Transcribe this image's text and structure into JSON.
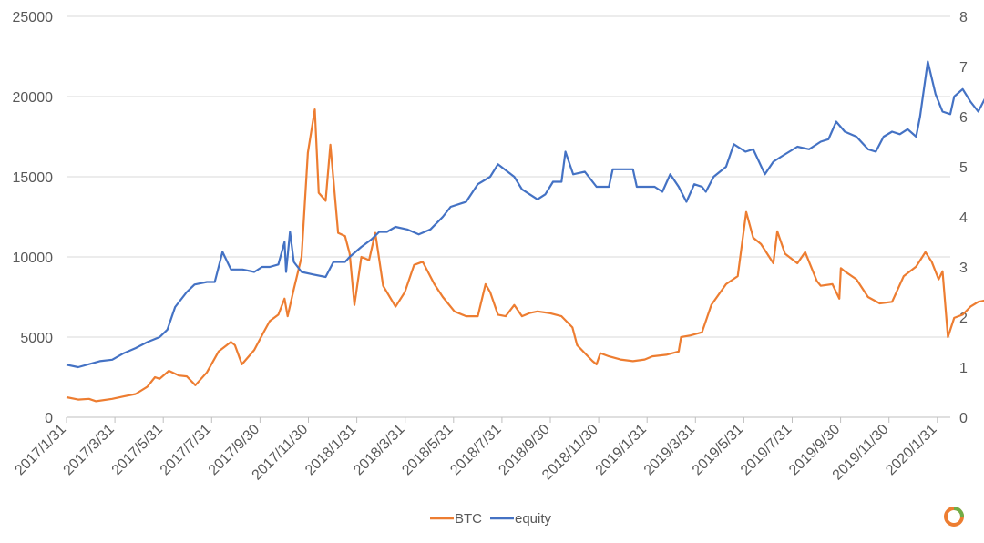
{
  "chart_data": {
    "type": "line",
    "title": "",
    "xlabel": "",
    "ylabel": "",
    "x_tick_labels": [
      "2017/1/31",
      "2017/3/31",
      "2017/5/31",
      "2017/7/31",
      "2017/9/30",
      "2017/11/30",
      "2018/1/31",
      "2018/3/31",
      "2018/5/31",
      "2018/7/31",
      "2018/9/30",
      "2018/11/30",
      "2019/1/31",
      "2019/3/31",
      "2019/5/31",
      "2019/7/31",
      "2019/9/30",
      "2019/11/30",
      "2020/1/31"
    ],
    "x_range": [
      "2017-01-31",
      "2020-03-15"
    ],
    "y_left": {
      "min": 0,
      "max": 25000,
      "ticks": [
        "0",
        "5000",
        "10000",
        "15000",
        "20000",
        "25000"
      ]
    },
    "y_right": {
      "min": 0,
      "max": 8,
      "ticks": [
        "0",
        "1",
        "2",
        "3",
        "4",
        "5",
        "6",
        "7",
        "8"
      ]
    },
    "grid": "horizontal",
    "legend_position": "bottom",
    "series": [
      {
        "name": "BTC",
        "axis": "left",
        "color": "#ED7D31",
        "points": [
          [
            "2017-01-31",
            1250
          ],
          [
            "2017-02-15",
            1100
          ],
          [
            "2017-03-01",
            1150
          ],
          [
            "2017-03-10",
            1000
          ],
          [
            "2017-03-31",
            1150
          ],
          [
            "2017-04-15",
            1300
          ],
          [
            "2017-04-30",
            1450
          ],
          [
            "2017-05-15",
            1900
          ],
          [
            "2017-05-25",
            2500
          ],
          [
            "2017-05-31",
            2400
          ],
          [
            "2017-06-12",
            2900
          ],
          [
            "2017-06-25",
            2600
          ],
          [
            "2017-07-05",
            2550
          ],
          [
            "2017-07-16",
            2000
          ],
          [
            "2017-07-31",
            2800
          ],
          [
            "2017-08-15",
            4100
          ],
          [
            "2017-08-31",
            4700
          ],
          [
            "2017-09-05",
            4500
          ],
          [
            "2017-09-14",
            3300
          ],
          [
            "2017-09-30",
            4200
          ],
          [
            "2017-10-12",
            5300
          ],
          [
            "2017-10-20",
            6000
          ],
          [
            "2017-10-31",
            6400
          ],
          [
            "2017-11-08",
            7400
          ],
          [
            "2017-11-12",
            6300
          ],
          [
            "2017-11-20",
            8000
          ],
          [
            "2017-11-30",
            10000
          ],
          [
            "2017-12-08",
            16500
          ],
          [
            "2017-12-17",
            19200
          ],
          [
            "2017-12-22",
            14000
          ],
          [
            "2017-12-31",
            13500
          ],
          [
            "2018-01-06",
            17000
          ],
          [
            "2018-01-16",
            11500
          ],
          [
            "2018-01-25",
            11300
          ],
          [
            "2018-01-31",
            10200
          ],
          [
            "2018-02-06",
            7000
          ],
          [
            "2018-02-15",
            10000
          ],
          [
            "2018-02-25",
            9800
          ],
          [
            "2018-03-05",
            11500
          ],
          [
            "2018-03-15",
            8200
          ],
          [
            "2018-03-31",
            6900
          ],
          [
            "2018-04-12",
            7800
          ],
          [
            "2018-04-24",
            9500
          ],
          [
            "2018-05-05",
            9700
          ],
          [
            "2018-05-20",
            8300
          ],
          [
            "2018-05-31",
            7500
          ],
          [
            "2018-06-15",
            6600
          ],
          [
            "2018-06-30",
            6300
          ],
          [
            "2018-07-15",
            6300
          ],
          [
            "2018-07-25",
            8300
          ],
          [
            "2018-07-31",
            7800
          ],
          [
            "2018-08-10",
            6400
          ],
          [
            "2018-08-20",
            6300
          ],
          [
            "2018-08-31",
            7000
          ],
          [
            "2018-09-10",
            6300
          ],
          [
            "2018-09-20",
            6500
          ],
          [
            "2018-09-30",
            6600
          ],
          [
            "2018-10-15",
            6500
          ],
          [
            "2018-10-31",
            6300
          ],
          [
            "2018-11-14",
            5600
          ],
          [
            "2018-11-20",
            4500
          ],
          [
            "2018-11-30",
            4000
          ],
          [
            "2018-12-10",
            3500
          ],
          [
            "2018-12-15",
            3300
          ],
          [
            "2018-12-20",
            4000
          ],
          [
            "2018-12-31",
            3800
          ],
          [
            "2019-01-15",
            3600
          ],
          [
            "2019-01-31",
            3500
          ],
          [
            "2019-02-15",
            3600
          ],
          [
            "2019-02-25",
            3800
          ],
          [
            "2019-03-15",
            3900
          ],
          [
            "2019-03-31",
            4100
          ],
          [
            "2019-04-03",
            5000
          ],
          [
            "2019-04-15",
            5100
          ],
          [
            "2019-04-30",
            5300
          ],
          [
            "2019-05-12",
            7000
          ],
          [
            "2019-05-31",
            8300
          ],
          [
            "2019-06-15",
            8800
          ],
          [
            "2019-06-26",
            12800
          ],
          [
            "2019-07-05",
            11200
          ],
          [
            "2019-07-15",
            10800
          ],
          [
            "2019-07-31",
            9600
          ],
          [
            "2019-08-05",
            11600
          ],
          [
            "2019-08-15",
            10200
          ],
          [
            "2019-08-31",
            9600
          ],
          [
            "2019-09-10",
            10300
          ],
          [
            "2019-09-25",
            8500
          ],
          [
            "2019-09-30",
            8200
          ],
          [
            "2019-10-15",
            8300
          ],
          [
            "2019-10-24",
            7400
          ],
          [
            "2019-10-26",
            9300
          ],
          [
            "2019-10-31",
            9100
          ],
          [
            "2019-11-15",
            8600
          ],
          [
            "2019-11-30",
            7500
          ],
          [
            "2019-12-15",
            7100
          ],
          [
            "2019-12-31",
            7200
          ],
          [
            "2020-01-15",
            8800
          ],
          [
            "2020-01-31",
            9400
          ],
          [
            "2020-02-12",
            10300
          ],
          [
            "2020-02-20",
            9700
          ],
          [
            "2020-02-29",
            8600
          ],
          [
            "2020-03-05",
            9100
          ],
          [
            "2020-03-12",
            5000
          ],
          [
            "2020-03-20",
            6200
          ],
          [
            "2020-03-31",
            6400
          ],
          [
            "2020-04-10",
            6900
          ],
          [
            "2020-04-20",
            7200
          ],
          [
            "2020-04-30",
            7300
          ]
        ]
      },
      {
        "name": "equity",
        "axis": "right",
        "color": "#4472C4",
        "points": [
          [
            "2017-01-31",
            1.05
          ],
          [
            "2017-02-15",
            1.0
          ],
          [
            "2017-03-15",
            1.12
          ],
          [
            "2017-03-31",
            1.15
          ],
          [
            "2017-04-15",
            1.28
          ],
          [
            "2017-04-30",
            1.38
          ],
          [
            "2017-05-15",
            1.5
          ],
          [
            "2017-05-31",
            1.6
          ],
          [
            "2017-06-10",
            1.75
          ],
          [
            "2017-06-20",
            2.2
          ],
          [
            "2017-07-05",
            2.5
          ],
          [
            "2017-07-15",
            2.65
          ],
          [
            "2017-07-31",
            2.7
          ],
          [
            "2017-08-10",
            2.7
          ],
          [
            "2017-08-20",
            3.3
          ],
          [
            "2017-08-31",
            2.95
          ],
          [
            "2017-09-15",
            2.95
          ],
          [
            "2017-09-30",
            2.9
          ],
          [
            "2017-10-10",
            3.0
          ],
          [
            "2017-10-20",
            3.0
          ],
          [
            "2017-10-31",
            3.05
          ],
          [
            "2017-11-08",
            3.5
          ],
          [
            "2017-11-10",
            2.9
          ],
          [
            "2017-11-15",
            3.7
          ],
          [
            "2017-11-20",
            3.1
          ],
          [
            "2017-11-30",
            2.9
          ],
          [
            "2017-12-15",
            2.85
          ],
          [
            "2017-12-31",
            2.8
          ],
          [
            "2018-01-10",
            3.1
          ],
          [
            "2018-01-25",
            3.1
          ],
          [
            "2018-01-31",
            3.2
          ],
          [
            "2018-02-15",
            3.4
          ],
          [
            "2018-02-28",
            3.55
          ],
          [
            "2018-03-10",
            3.7
          ],
          [
            "2018-03-20",
            3.7
          ],
          [
            "2018-03-31",
            3.8
          ],
          [
            "2018-04-15",
            3.75
          ],
          [
            "2018-04-30",
            3.65
          ],
          [
            "2018-05-15",
            3.75
          ],
          [
            "2018-05-31",
            4.0
          ],
          [
            "2018-06-10",
            4.2
          ],
          [
            "2018-06-30",
            4.3
          ],
          [
            "2018-07-15",
            4.65
          ],
          [
            "2018-07-31",
            4.8
          ],
          [
            "2018-08-10",
            5.05
          ],
          [
            "2018-08-31",
            4.8
          ],
          [
            "2018-09-10",
            4.55
          ],
          [
            "2018-09-30",
            4.35
          ],
          [
            "2018-10-10",
            4.45
          ],
          [
            "2018-10-20",
            4.7
          ],
          [
            "2018-10-31",
            4.7
          ],
          [
            "2018-11-05",
            5.3
          ],
          [
            "2018-11-15",
            4.85
          ],
          [
            "2018-11-30",
            4.9
          ],
          [
            "2018-12-15",
            4.6
          ],
          [
            "2018-12-31",
            4.6
          ],
          [
            "2019-01-05",
            4.95
          ],
          [
            "2019-01-31",
            4.95
          ],
          [
            "2019-02-05",
            4.6
          ],
          [
            "2019-02-28",
            4.6
          ],
          [
            "2019-03-10",
            4.5
          ],
          [
            "2019-03-20",
            4.85
          ],
          [
            "2019-03-31",
            4.6
          ],
          [
            "2019-04-10",
            4.3
          ],
          [
            "2019-04-20",
            4.65
          ],
          [
            "2019-04-30",
            4.6
          ],
          [
            "2019-05-05",
            4.5
          ],
          [
            "2019-05-15",
            4.8
          ],
          [
            "2019-05-31",
            5.0
          ],
          [
            "2019-06-10",
            5.45
          ],
          [
            "2019-06-25",
            5.3
          ],
          [
            "2019-07-05",
            5.35
          ],
          [
            "2019-07-20",
            4.85
          ],
          [
            "2019-07-31",
            5.1
          ],
          [
            "2019-08-10",
            5.2
          ],
          [
            "2019-08-31",
            5.4
          ],
          [
            "2019-09-15",
            5.35
          ],
          [
            "2019-09-30",
            5.5
          ],
          [
            "2019-10-10",
            5.55
          ],
          [
            "2019-10-20",
            5.9
          ],
          [
            "2019-10-31",
            5.7
          ],
          [
            "2019-11-15",
            5.6
          ],
          [
            "2019-11-30",
            5.35
          ],
          [
            "2019-12-10",
            5.3
          ],
          [
            "2019-12-20",
            5.6
          ],
          [
            "2019-12-31",
            5.7
          ],
          [
            "2020-01-10",
            5.65
          ],
          [
            "2020-01-20",
            5.75
          ],
          [
            "2020-01-31",
            5.6
          ],
          [
            "2020-02-05",
            6.0
          ],
          [
            "2020-02-15",
            7.1
          ],
          [
            "2020-02-25",
            6.45
          ],
          [
            "2020-03-05",
            6.1
          ],
          [
            "2020-03-15",
            6.05
          ],
          [
            "2020-03-20",
            6.4
          ],
          [
            "2020-03-31",
            6.55
          ],
          [
            "2020-04-10",
            6.3
          ],
          [
            "2020-04-20",
            6.1
          ],
          [
            "2020-04-30",
            6.4
          ]
        ]
      }
    ]
  }
}
